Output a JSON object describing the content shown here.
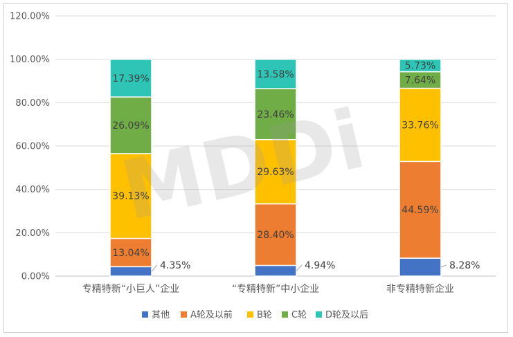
{
  "chart_data": {
    "type": "bar",
    "stacked": true,
    "title": "",
    "xlabel": "",
    "ylabel": "",
    "ylim": [
      0,
      120
    ],
    "yticks": [
      "0.00%",
      "20.00%",
      "40.00%",
      "60.00%",
      "80.00%",
      "100.00%",
      "120.00%"
    ],
    "grid": true,
    "legend_position": "bottom",
    "categories": [
      "专精特新“小巨人”企业",
      "“专精特新”中小企业",
      "非专精特新企业"
    ],
    "series": [
      {
        "name": "其他",
        "color": "#4472c4",
        "values": [
          4.35,
          4.94,
          8.28
        ],
        "labels": [
          "4.35%",
          "4.94%",
          "8.28%"
        ]
      },
      {
        "name": "A轮及以前",
        "color": "#ed7d31",
        "values": [
          13.04,
          28.4,
          44.59
        ],
        "labels": [
          "13.04%",
          "28.40%",
          "44.59%"
        ]
      },
      {
        "name": "B轮",
        "color": "#ffc000",
        "values": [
          39.13,
          29.63,
          33.76
        ],
        "labels": [
          "39.13%",
          "29.63%",
          "33.76%"
        ]
      },
      {
        "name": "C轮",
        "color": "#70ad47",
        "values": [
          26.09,
          23.46,
          7.64
        ],
        "labels": [
          "26.09%",
          "23.46%",
          "7.64%"
        ]
      },
      {
        "name": "D轮及以后",
        "color": "#2ec4b6",
        "values": [
          17.39,
          13.58,
          5.73
        ],
        "labels": [
          "17.39%",
          "13.58%",
          "5.73%"
        ]
      }
    ],
    "watermark": "MDDi"
  }
}
